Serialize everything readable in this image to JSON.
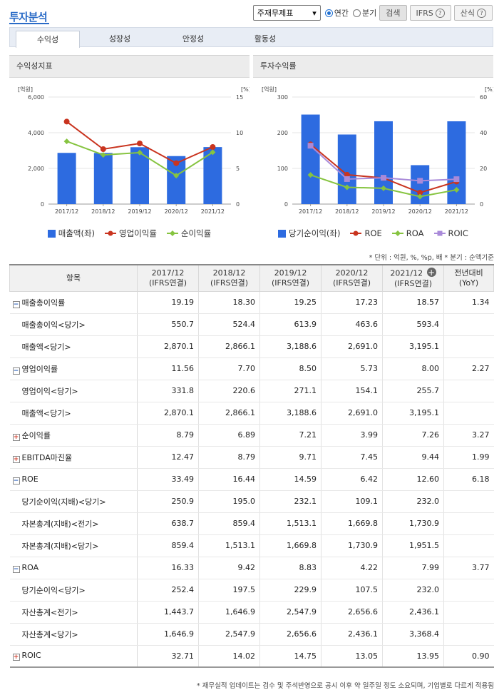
{
  "header": {
    "title": "투자분석",
    "select_value": "주재무제표",
    "radio_annual": "연간",
    "radio_quarter": "분기",
    "search_btn": "검색",
    "ifrs_btn": "IFRS",
    "formula_btn": "산식"
  },
  "tabs": [
    "수익성",
    "성장성",
    "안정성",
    "활동성"
  ],
  "panels": {
    "left_title": "수익성지표",
    "right_title": "투자수익률"
  },
  "chart_data": [
    {
      "type": "bar",
      "categories": [
        "2017/12",
        "2018/12",
        "2019/12",
        "2020/12",
        "2021/12"
      ],
      "left_unit": "[억원]",
      "right_unit": "[%]",
      "left_ticks": [
        "6,000",
        "4,000",
        "2,000",
        "0"
      ],
      "right_ticks": [
        "15",
        "10",
        "5",
        "0"
      ],
      "ylim": [
        0,
        6000
      ],
      "y2lim": [
        0,
        15
      ],
      "bars": {
        "name": "매출액(좌)",
        "color": "#2d6be0",
        "values": [
          2870.1,
          2866.1,
          3188.6,
          2691.0,
          3195.1
        ]
      },
      "lines": [
        {
          "name": "영업이익률",
          "color": "#c9341f",
          "values": [
            11.56,
            7.7,
            8.5,
            5.73,
            8.0
          ]
        },
        {
          "name": "순이익률",
          "color": "#86c440",
          "values": [
            8.79,
            6.89,
            7.21,
            3.99,
            7.26
          ]
        }
      ]
    },
    {
      "type": "bar",
      "categories": [
        "2017/12",
        "2018/12",
        "2019/12",
        "2020/12",
        "2021/12"
      ],
      "left_unit": "[억원]",
      "right_unit": "[%]",
      "left_ticks": [
        "300",
        "200",
        "100",
        "0"
      ],
      "right_ticks": [
        "60",
        "40",
        "20",
        "0"
      ],
      "ylim": [
        0,
        300
      ],
      "y2lim": [
        0,
        60
      ],
      "bars": {
        "name": "당기순이익(좌)",
        "color": "#2d6be0",
        "values": [
          250.9,
          195.0,
          232.1,
          109.1,
          232.0
        ]
      },
      "lines": [
        {
          "name": "ROE",
          "color": "#c9341f",
          "values": [
            33.49,
            16.44,
            14.59,
            6.42,
            12.6
          ]
        },
        {
          "name": "ROA",
          "color": "#86c440",
          "values": [
            16.33,
            9.42,
            8.83,
            4.22,
            7.99
          ]
        },
        {
          "name": "ROIC",
          "color": "#a98ad9",
          "values": [
            32.71,
            14.02,
            14.75,
            13.05,
            13.95
          ]
        }
      ]
    }
  ],
  "unit_note": "* 단위 : 억원, %, %p, 배   * 분기 : 순액기준",
  "table": {
    "col_item": "항목",
    "cols": [
      [
        "2017/12",
        "(IFRS연결)"
      ],
      [
        "2018/12",
        "(IFRS연결)"
      ],
      [
        "2019/12",
        "(IFRS연결)"
      ],
      [
        "2020/12",
        "(IFRS연결)"
      ],
      [
        "2021/12",
        "(IFRS연결)"
      ]
    ],
    "col_yoy": [
      "전년대비",
      "(YoY)"
    ],
    "rows": [
      {
        "label": "매출총이익률",
        "toggle": "minus",
        "values": [
          "19.19",
          "18.30",
          "19.25",
          "17.23",
          "18.57"
        ],
        "yoy": "1.34"
      },
      {
        "label": "매출총이익<당기>",
        "values": [
          "550.7",
          "524.4",
          "613.9",
          "463.6",
          "593.4"
        ],
        "yoy": ""
      },
      {
        "label": "매출액<당기>",
        "values": [
          "2,870.1",
          "2,866.1",
          "3,188.6",
          "2,691.0",
          "3,195.1"
        ],
        "yoy": ""
      },
      {
        "label": "영업이익률",
        "toggle": "minus",
        "values": [
          "11.56",
          "7.70",
          "8.50",
          "5.73",
          "8.00"
        ],
        "yoy": "2.27"
      },
      {
        "label": "영업이익<당기>",
        "values": [
          "331.8",
          "220.6",
          "271.1",
          "154.1",
          "255.7"
        ],
        "yoy": ""
      },
      {
        "label": "매출액<당기>",
        "values": [
          "2,870.1",
          "2,866.1",
          "3,188.6",
          "2,691.0",
          "3,195.1"
        ],
        "yoy": ""
      },
      {
        "label": "순이익률",
        "toggle": "plus",
        "values": [
          "8.79",
          "6.89",
          "7.21",
          "3.99",
          "7.26"
        ],
        "yoy": "3.27"
      },
      {
        "label": "EBITDA마진율",
        "toggle": "plus",
        "values": [
          "12.47",
          "8.79",
          "9.71",
          "7.45",
          "9.44"
        ],
        "yoy": "1.99"
      },
      {
        "label": "ROE",
        "toggle": "minus",
        "values": [
          "33.49",
          "16.44",
          "14.59",
          "6.42",
          "12.60"
        ],
        "yoy": "6.18"
      },
      {
        "label": "당기순이익(지배)<당기>",
        "values": [
          "250.9",
          "195.0",
          "232.1",
          "109.1",
          "232.0"
        ],
        "yoy": ""
      },
      {
        "label": "자본총계(지배)<전기>",
        "values": [
          "638.7",
          "859.4",
          "1,513.1",
          "1,669.8",
          "1,730.9"
        ],
        "yoy": ""
      },
      {
        "label": "자본총계(지배)<당기>",
        "values": [
          "859.4",
          "1,513.1",
          "1,669.8",
          "1,730.9",
          "1,951.5"
        ],
        "yoy": ""
      },
      {
        "label": "ROA",
        "toggle": "minus",
        "values": [
          "16.33",
          "9.42",
          "8.83",
          "4.22",
          "7.99"
        ],
        "yoy": "3.77"
      },
      {
        "label": "당기순이익<당기>",
        "values": [
          "252.4",
          "197.5",
          "229.9",
          "107.5",
          "232.0"
        ],
        "yoy": ""
      },
      {
        "label": "자산총계<전기>",
        "values": [
          "1,443.7",
          "1,646.9",
          "2,547.9",
          "2,656.6",
          "2,436.1"
        ],
        "yoy": ""
      },
      {
        "label": "자산총계<당기>",
        "values": [
          "1,646.9",
          "2,547.9",
          "2,656.6",
          "2,436.1",
          "3,368.4"
        ],
        "yoy": ""
      },
      {
        "label": "ROIC",
        "toggle": "plus",
        "values": [
          "32.71",
          "14.02",
          "14.75",
          "13.05",
          "13.95"
        ],
        "yoy": "0.90"
      }
    ]
  },
  "footnote": "* 재무실적 업데이트는 검수 및 주석반영으로 공시 이후 약 일주일 정도 소요되며, 기업별로 다르게 적용됨"
}
